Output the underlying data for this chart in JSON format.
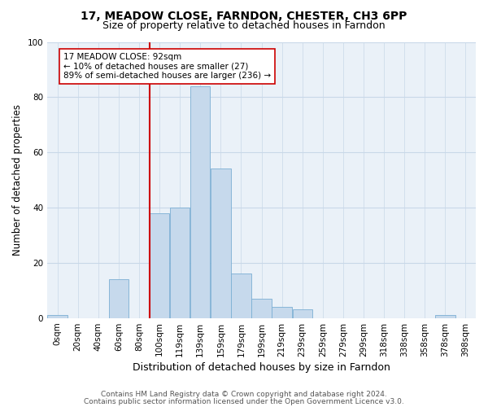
{
  "title": "17, MEADOW CLOSE, FARNDON, CHESTER, CH3 6PP",
  "subtitle": "Size of property relative to detached houses in Farndon",
  "xlabel": "Distribution of detached houses by size in Farndon",
  "ylabel": "Number of detached properties",
  "bar_labels": [
    "0sqm",
    "20sqm",
    "40sqm",
    "60sqm",
    "80sqm",
    "100sqm",
    "119sqm",
    "139sqm",
    "159sqm",
    "179sqm",
    "199sqm",
    "219sqm",
    "239sqm",
    "259sqm",
    "279sqm",
    "299sqm",
    "318sqm",
    "338sqm",
    "358sqm",
    "378sqm",
    "398sqm"
  ],
  "bar_heights": [
    1,
    0,
    0,
    14,
    0,
    38,
    40,
    84,
    54,
    16,
    7,
    4,
    3,
    0,
    0,
    0,
    0,
    0,
    0,
    1,
    0
  ],
  "bar_color": "#c6d9ec",
  "bar_edge_color": "#7bafd4",
  "vline_color": "#cc0000",
  "annotation_text": "17 MEADOW CLOSE: 92sqm\n← 10% of detached houses are smaller (27)\n89% of semi-detached houses are larger (236) →",
  "annotation_box_color": "white",
  "annotation_box_edge": "#cc0000",
  "ylim": [
    0,
    100
  ],
  "yticks": [
    0,
    20,
    40,
    60,
    80,
    100
  ],
  "footer1": "Contains HM Land Registry data © Crown copyright and database right 2024.",
  "footer2": "Contains public sector information licensed under the Open Government Licence v3.0.",
  "title_fontsize": 10,
  "subtitle_fontsize": 9,
  "xlabel_fontsize": 9,
  "ylabel_fontsize": 8.5,
  "tick_fontsize": 7.5,
  "annotation_fontsize": 7.5,
  "footer_fontsize": 6.5,
  "plot_bg_color": "#eaf1f8",
  "grid_color": "#c8d8e8",
  "vline_x_idx": 4.5
}
